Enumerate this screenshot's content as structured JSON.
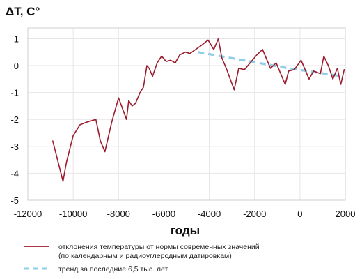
{
  "chart_data": {
    "type": "line",
    "ylabel": "ΔT, C°",
    "xlabel": "годы",
    "xlim": [
      -12000,
      2000
    ],
    "ylim": [
      -5,
      1.4
    ],
    "x_ticks": [
      -12000,
      -10000,
      -8000,
      -6000,
      -4000,
      -2000,
      0,
      2000
    ],
    "x_tick_labels": [
      "-12000",
      "-10000",
      "-8000",
      "-6000",
      "-4000",
      "-2000",
      "0",
      "2000"
    ],
    "y_ticks": [
      1,
      0,
      -1,
      -2,
      -3,
      -4,
      -5
    ],
    "y_tick_labels": [
      "1",
      "0",
      "-1",
      "-2",
      "-3",
      "-4",
      "-5"
    ],
    "grid": {
      "horizontal": true,
      "vertical": true
    },
    "legend_position": "bottom",
    "series": [
      {
        "name": "отклонения температуры от нормы современных значений",
        "name_line2": "(по календарным и радиоуглеродным датировкам)",
        "color": "#9b1c2c",
        "style": "solid",
        "points": [
          [
            -10900,
            -2.8
          ],
          [
            -10450,
            -4.3
          ],
          [
            -10300,
            -3.6
          ],
          [
            -10000,
            -2.6
          ],
          [
            -9700,
            -2.2
          ],
          [
            -9400,
            -2.1
          ],
          [
            -9000,
            -2.0
          ],
          [
            -8800,
            -2.8
          ],
          [
            -8600,
            -3.2
          ],
          [
            -8300,
            -2.1
          ],
          [
            -8000,
            -1.2
          ],
          [
            -7650,
            -2.0
          ],
          [
            -7550,
            -1.3
          ],
          [
            -7400,
            -1.5
          ],
          [
            -7250,
            -1.4
          ],
          [
            -7050,
            -1.0
          ],
          [
            -6900,
            -0.8
          ],
          [
            -6750,
            0.0
          ],
          [
            -6650,
            -0.1
          ],
          [
            -6500,
            -0.4
          ],
          [
            -6300,
            0.1
          ],
          [
            -6100,
            0.35
          ],
          [
            -5900,
            0.15
          ],
          [
            -5700,
            0.2
          ],
          [
            -5500,
            0.1
          ],
          [
            -5300,
            0.4
          ],
          [
            -5050,
            0.5
          ],
          [
            -4850,
            0.45
          ],
          [
            -4600,
            0.6
          ],
          [
            -4350,
            0.75
          ],
          [
            -4050,
            0.95
          ],
          [
            -3800,
            0.6
          ],
          [
            -3600,
            1.0
          ],
          [
            -3450,
            0.3
          ],
          [
            -3250,
            -0.1
          ],
          [
            -2900,
            -0.9
          ],
          [
            -2700,
            -0.1
          ],
          [
            -2450,
            -0.15
          ],
          [
            -2250,
            0.05
          ],
          [
            -1900,
            0.4
          ],
          [
            -1650,
            0.6
          ],
          [
            -1300,
            -0.1
          ],
          [
            -1050,
            0.1
          ],
          [
            -650,
            -0.7
          ],
          [
            -500,
            -0.2
          ],
          [
            -250,
            -0.15
          ],
          [
            50,
            0.2
          ],
          [
            400,
            -0.5
          ],
          [
            600,
            -0.2
          ],
          [
            900,
            -0.3
          ],
          [
            1050,
            0.35
          ],
          [
            1250,
            0.0
          ],
          [
            1450,
            -0.5
          ],
          [
            1650,
            -0.1
          ],
          [
            1800,
            -0.7
          ],
          [
            1950,
            -0.15
          ]
        ]
      },
      {
        "name": "тренд за последние 6,5 тыс. лет",
        "color": "#8fcde8",
        "style": "dashed",
        "points": [
          [
            -4500,
            0.5
          ],
          [
            -2500,
            0.2
          ],
          [
            -500,
            -0.1
          ],
          [
            1900,
            -0.4
          ]
        ]
      }
    ]
  }
}
